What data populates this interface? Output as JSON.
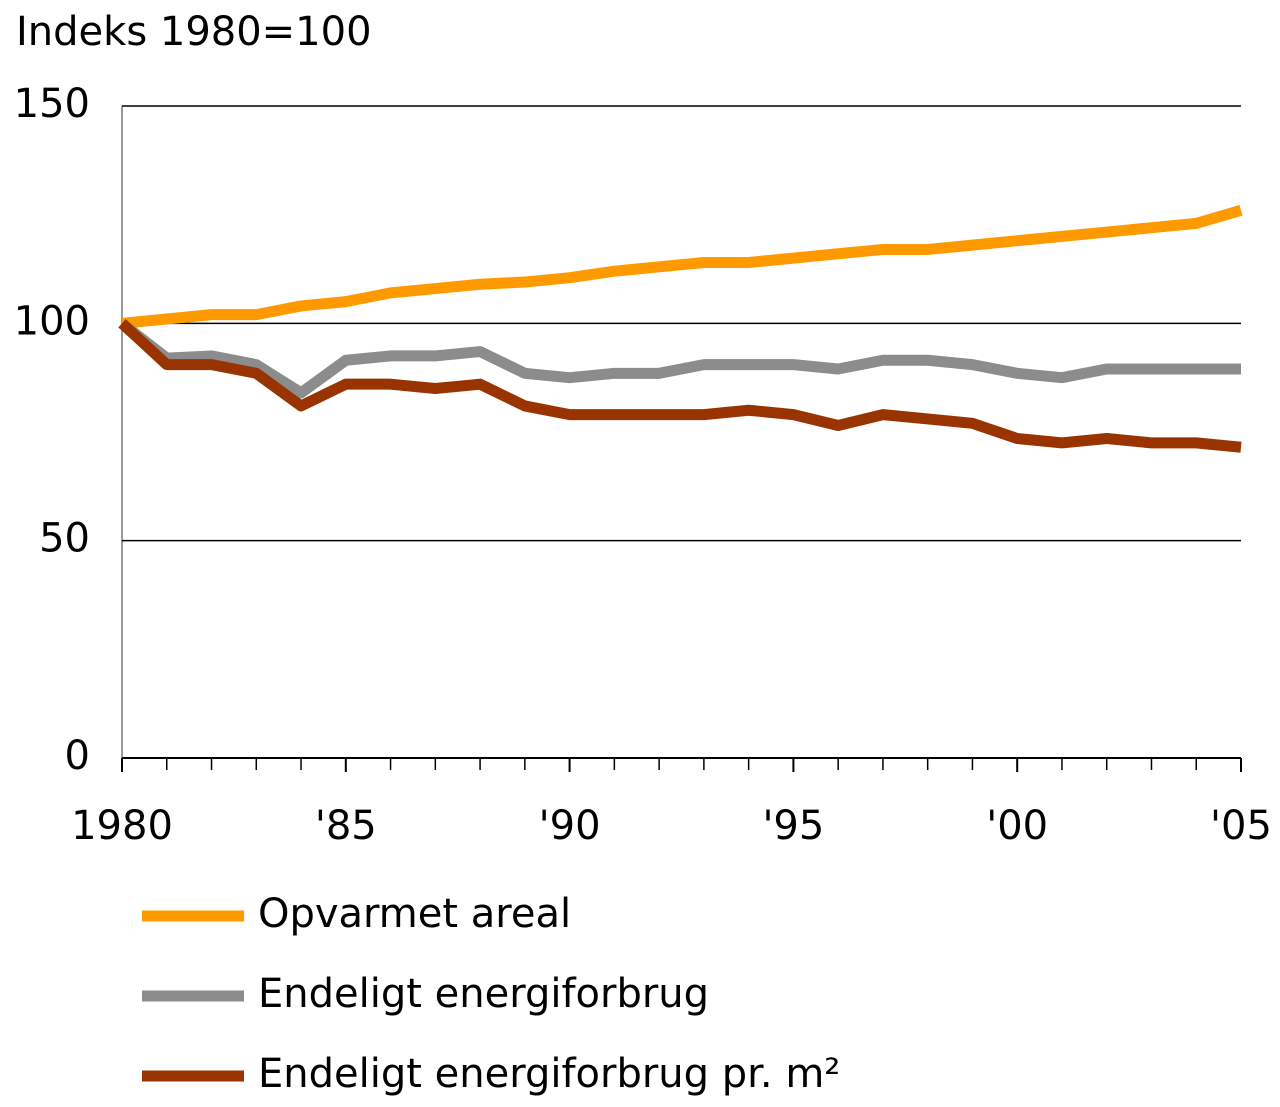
{
  "chart_data": {
    "type": "line",
    "title": "Indeks 1980=100",
    "x": [
      1980,
      1981,
      1982,
      1983,
      1984,
      1985,
      1986,
      1987,
      1988,
      1989,
      1990,
      1991,
      1992,
      1993,
      1994,
      1995,
      1996,
      1997,
      1998,
      1999,
      2000,
      2001,
      2002,
      2003,
      2004,
      2005
    ],
    "series": [
      {
        "name": "Opvarmet areal",
        "color": "#ff9900",
        "values": [
          100,
          101,
          102,
          102,
          104,
          105,
          107,
          108,
          109,
          109.5,
          110.5,
          112,
          113,
          114,
          114,
          115,
          116,
          117,
          117,
          118,
          119,
          120,
          121,
          122,
          123,
          126
        ]
      },
      {
        "name": "Endeligt energiforbrug",
        "color": "#8c8c8c",
        "values": [
          100,
          92,
          92.5,
          90.5,
          84,
          91.5,
          92.5,
          92.5,
          93.5,
          88.5,
          87.5,
          88.5,
          88.5,
          90.5,
          90.5,
          90.5,
          89.5,
          91.5,
          91.5,
          90.5,
          88.5,
          87.5,
          89.5,
          89.5,
          89.5,
          89.5
        ]
      },
      {
        "name": "Endeligt energiforbrug pr. m²",
        "color": "#993300",
        "values": [
          100,
          90.5,
          90.5,
          88.5,
          81,
          86,
          86,
          85,
          86,
          81,
          79,
          79,
          79,
          79,
          80,
          79,
          76.5,
          79,
          78,
          77,
          73.5,
          72.5,
          73.5,
          72.5,
          72.5,
          71.5
        ]
      }
    ],
    "xlim": [
      1980,
      2005
    ],
    "xticks": [
      {
        "value": 1980,
        "label": "1980"
      },
      {
        "value": 1985,
        "label": "'85"
      },
      {
        "value": 1990,
        "label": "'90"
      },
      {
        "value": 1995,
        "label": "'95"
      },
      {
        "value": 2000,
        "label": "'00"
      },
      {
        "value": 2005,
        "label": "'05"
      }
    ],
    "ylim": [
      0,
      150
    ],
    "yticks": [
      0,
      50,
      100,
      150
    ],
    "grid": true,
    "legend": "bottom"
  }
}
